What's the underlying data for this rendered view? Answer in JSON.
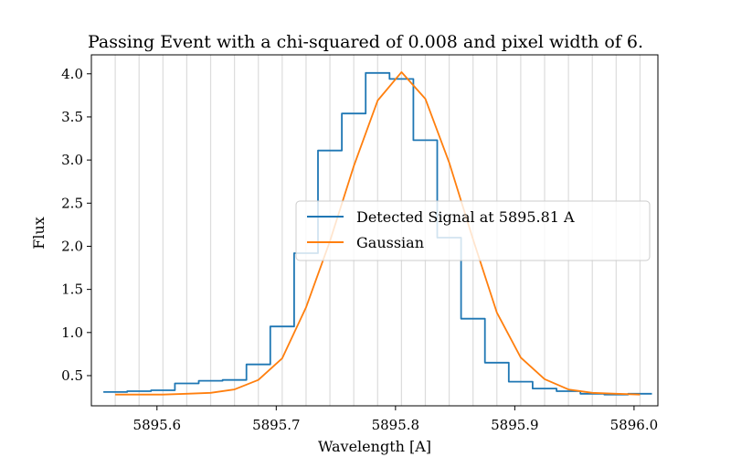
{
  "chart_data": {
    "type": "line",
    "title": "Passing Event with a chi-squared of 0.008 and pixel width of 6.",
    "xlabel": "Wavelength [A]",
    "ylabel": "Flux",
    "xlim": [
      5895.545,
      5896.02
    ],
    "ylim": [
      0.15,
      4.22
    ],
    "x_ticks": [
      5895.6,
      5895.7,
      5895.8,
      5895.9,
      5896.0
    ],
    "x_tick_labels": [
      "5895.6",
      "5895.7",
      "5895.8",
      "5895.9",
      "5896.0"
    ],
    "y_ticks": [
      0.5,
      1.0,
      1.5,
      2.0,
      2.5,
      3.0,
      3.5,
      4.0
    ],
    "y_tick_labels": [
      "0.5",
      "1.0",
      "1.5",
      "2.0",
      "2.5",
      "3.0",
      "3.5",
      "4.0"
    ],
    "grid": "vertical lines at pixel positions",
    "grid_x": [
      5895.565,
      5895.585,
      5895.605,
      5895.625,
      5895.645,
      5895.665,
      5895.685,
      5895.705,
      5895.725,
      5895.745,
      5895.765,
      5895.785,
      5895.805,
      5895.825,
      5895.845,
      5895.865,
      5895.885,
      5895.905,
      5895.925,
      5895.945,
      5895.965,
      5895.985,
      5896.005
    ],
    "legend_position": "center-right",
    "series": [
      {
        "name": "Detected Signal at 5895.81 A",
        "style": "step",
        "color": "#1f77b4",
        "x": [
          5895.565,
          5895.585,
          5895.605,
          5895.625,
          5895.645,
          5895.665,
          5895.685,
          5895.705,
          5895.725,
          5895.745,
          5895.765,
          5895.785,
          5895.805,
          5895.825,
          5895.845,
          5895.865,
          5895.885,
          5895.905,
          5895.925,
          5895.945,
          5895.965,
          5895.985,
          5896.005
        ],
        "y": [
          0.31,
          0.32,
          0.33,
          0.41,
          0.44,
          0.45,
          0.63,
          1.07,
          1.92,
          3.11,
          3.54,
          4.01,
          3.94,
          3.23,
          2.1,
          1.16,
          0.65,
          0.43,
          0.35,
          0.32,
          0.29,
          0.28,
          0.29
        ]
      },
      {
        "name": "Gaussian",
        "style": "line",
        "color": "#ff7f0e",
        "x": [
          5895.565,
          5895.585,
          5895.605,
          5895.625,
          5895.645,
          5895.665,
          5895.685,
          5895.705,
          5895.725,
          5895.745,
          5895.765,
          5895.785,
          5895.805,
          5895.825,
          5895.845,
          5895.865,
          5895.885,
          5895.905,
          5895.925,
          5895.945,
          5895.965,
          5895.985,
          5896.005
        ],
        "y": [
          0.28,
          0.28,
          0.28,
          0.29,
          0.3,
          0.34,
          0.45,
          0.7,
          1.29,
          2.06,
          2.93,
          3.69,
          4.02,
          3.71,
          2.97,
          2.08,
          1.23,
          0.71,
          0.46,
          0.34,
          0.3,
          0.29,
          0.28
        ]
      }
    ]
  }
}
